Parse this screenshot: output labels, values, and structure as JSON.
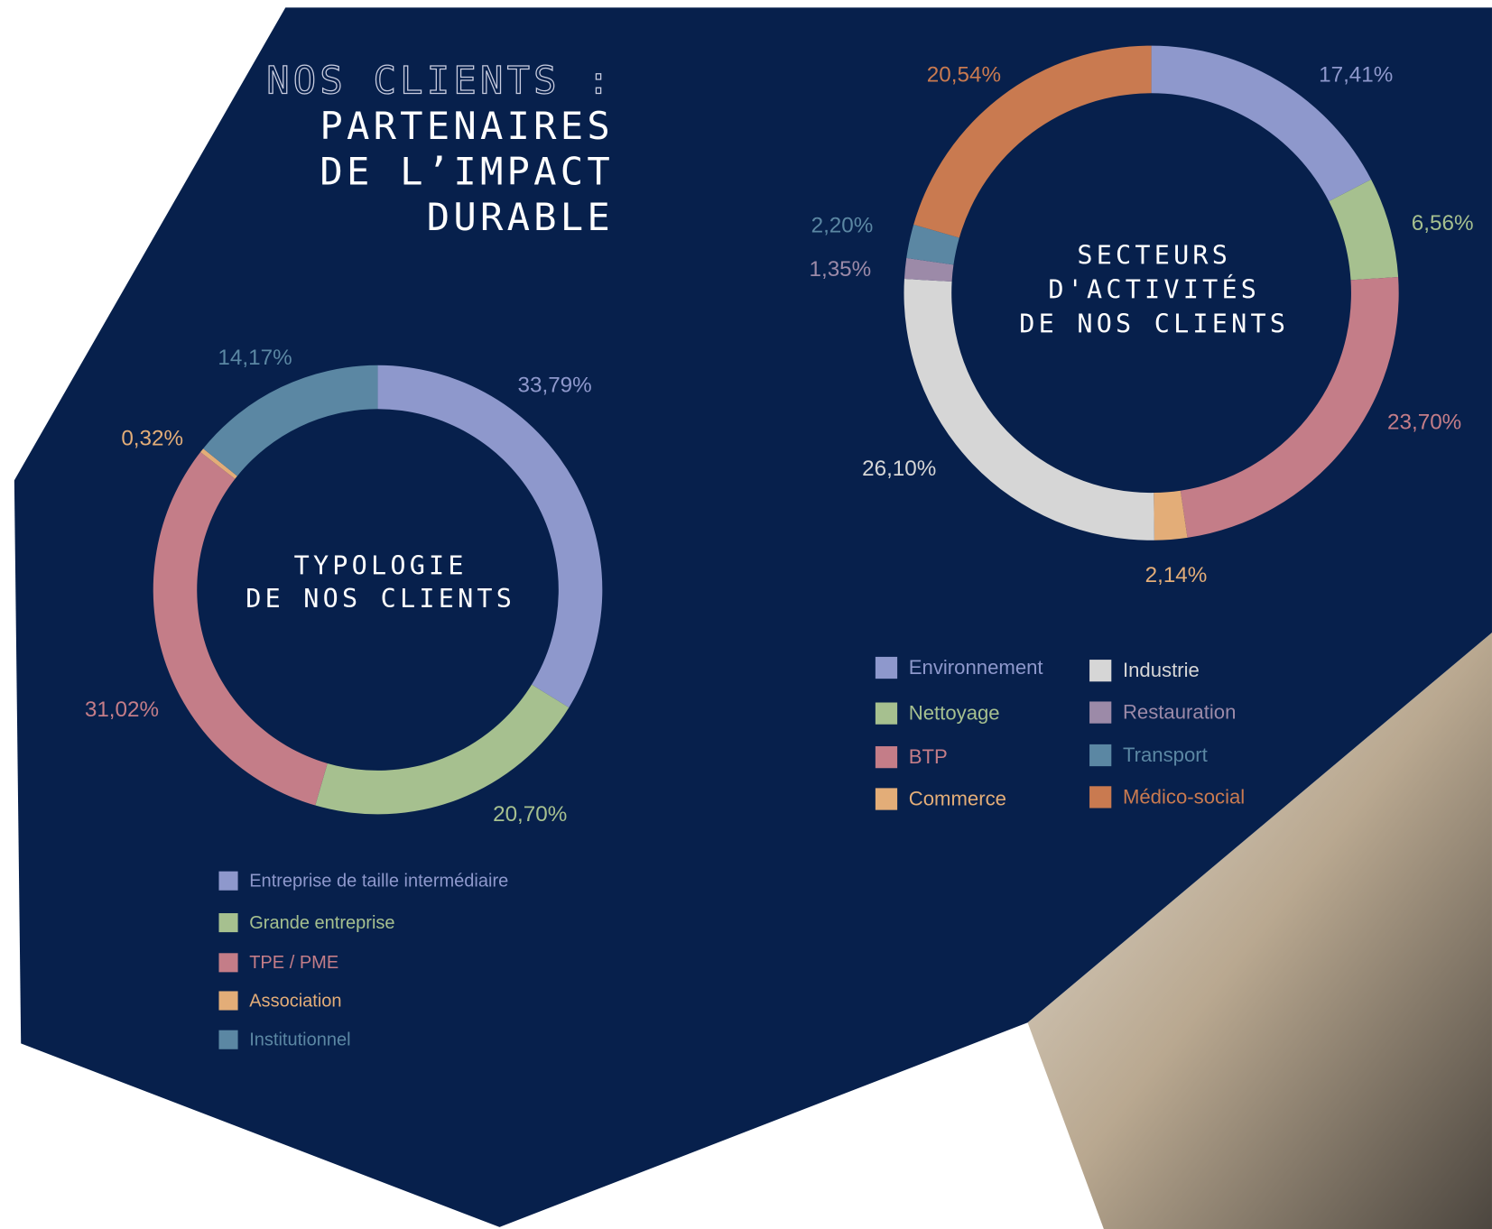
{
  "header": {
    "title_lines": [
      "NOS CLIENTS :",
      "PARTENAIRES",
      "DE L’IMPACT",
      "DURABLE"
    ]
  },
  "chart_data": [
    {
      "type": "pie",
      "donut": true,
      "title": [
        "TYPOLOGIE",
        "DE NOS CLIENTS"
      ],
      "categories": [
        "Entreprise de taille intermédiaire",
        "Grande entreprise",
        "TPE / PME",
        "Association",
        "Institutionnel"
      ],
      "values": [
        33.79,
        20.7,
        31.02,
        0.32,
        14.17
      ],
      "value_labels": [
        "33,79%",
        "20,70%",
        "31,02%",
        "0,32%",
        "14,17%"
      ],
      "colors": [
        "#8e98cc",
        "#a6c08f",
        "#c47d88",
        "#e3ad78",
        "#5b87a3"
      ]
    },
    {
      "type": "pie",
      "donut": true,
      "title": [
        "SECTEURS",
        "D'ACTIVITÉS",
        "DE NOS CLIENTS"
      ],
      "categories": [
        "Environnement",
        "Nettoyage",
        "BTP",
        "Commerce",
        "Industrie",
        "Restauration",
        "Transport",
        "Médico-social"
      ],
      "values": [
        17.41,
        6.56,
        23.7,
        2.14,
        26.1,
        1.35,
        2.2,
        20.54
      ],
      "value_labels": [
        "17,41%",
        "6,56%",
        "23,70%",
        "2,14%",
        "26,10%",
        "1,35%",
        "2,20%",
        "20,54%"
      ],
      "colors": [
        "#8e98cc",
        "#a6c08f",
        "#c47d88",
        "#e3ad78",
        "#d6d6d6",
        "#9c8aa8",
        "#5b87a3",
        "#c97a50"
      ]
    }
  ]
}
